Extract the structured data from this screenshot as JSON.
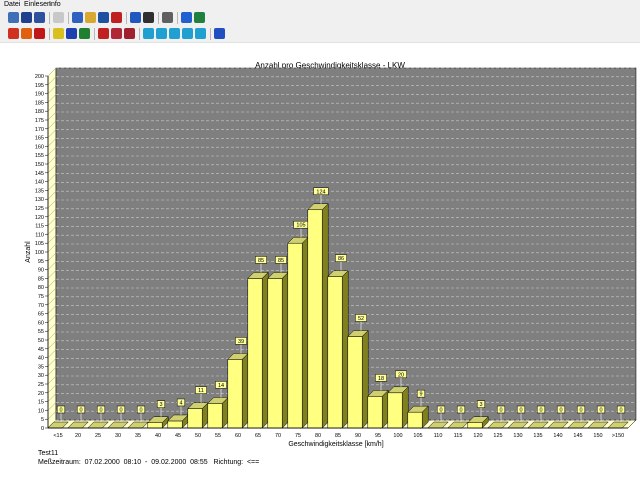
{
  "menu": {
    "items": [
      "Datei",
      "Einlesen",
      "Info"
    ]
  },
  "toolbar": {
    "row1": [
      {
        "name": "open-folder-icon",
        "color": "#3f6fb6"
      },
      {
        "name": "save-icon",
        "color": "#1f3f8f"
      },
      {
        "name": "save-all-icon",
        "color": "#2f4f9f"
      },
      {
        "sep": true
      },
      {
        "name": "filter-icon",
        "color": "#c8c8c8"
      },
      {
        "sep": true
      },
      {
        "name": "windows-icon",
        "color": "#3060c0"
      },
      {
        "name": "folder-icon",
        "color": "#d8a830"
      },
      {
        "name": "bar-chart-icon",
        "color": "#2050a0"
      },
      {
        "name": "edit-icon",
        "color": "#c02020"
      },
      {
        "sep": true
      },
      {
        "name": "clock-icon",
        "color": "#2058c0"
      },
      {
        "name": "stop-icon",
        "color": "#303030"
      },
      {
        "sep": true
      },
      {
        "name": "print-icon",
        "color": "#606060"
      },
      {
        "sep": true
      },
      {
        "name": "info-icon",
        "color": "#2060d0"
      },
      {
        "name": "globe-icon",
        "color": "#208040"
      }
    ],
    "row2": [
      {
        "name": "truck-red-icon",
        "color": "#d03020"
      },
      {
        "name": "car-orange-icon",
        "color": "#e06010"
      },
      {
        "name": "car-red-icon",
        "color": "#c01818"
      },
      {
        "sep": true
      },
      {
        "name": "bus-yellow-icon",
        "color": "#d8c020"
      },
      {
        "name": "truck-blue-icon",
        "color": "#2040b0"
      },
      {
        "name": "tractor-icon",
        "color": "#208030"
      },
      {
        "sep": true
      },
      {
        "name": "vehicle-red-icon",
        "color": "#c02020"
      },
      {
        "name": "vehicle-small-icon",
        "color": "#b02838"
      },
      {
        "name": "vehicle-group-icon",
        "color": "#a02030"
      },
      {
        "sep": true
      },
      {
        "name": "chart-type-1-icon",
        "color": "#20a0d0"
      },
      {
        "name": "chart-type-2-icon",
        "color": "#20a0d0"
      },
      {
        "name": "chart-type-3-icon",
        "color": "#20a0d0"
      },
      {
        "name": "chart-type-4-icon",
        "color": "#20a0d0"
      },
      {
        "name": "chart-type-5-icon",
        "color": "#20a0d0"
      },
      {
        "sep": true
      },
      {
        "name": "back-arrow-icon",
        "color": "#2050c0"
      }
    ]
  },
  "chart_data": {
    "type": "bar",
    "title": "Anzahl pro Geschwindigkeitsklasse - LKW",
    "xlabel": "Geschwindigkeitsklasse [km/h]",
    "ylabel": "Anzahl",
    "ylim": [
      0,
      200
    ],
    "ytick_step": 5,
    "grid": true,
    "categories": [
      "<15",
      "20",
      "25",
      "30",
      "35",
      "40",
      "45",
      "50",
      "55",
      "60",
      "65",
      "70",
      "75",
      "80",
      "85",
      "90",
      "95",
      "100",
      "105",
      "110",
      "115",
      "120",
      "125",
      "130",
      "135",
      "140",
      "145",
      "150",
      ">150"
    ],
    "values": [
      0,
      0,
      0,
      0,
      0,
      3,
      4,
      11,
      14,
      39,
      85,
      85,
      105,
      124,
      86,
      52,
      18,
      20,
      9,
      0,
      0,
      3,
      0,
      0,
      0,
      0,
      0,
      0,
      0
    ],
    "colors": {
      "plot_bg": "#7f7f7f",
      "bar_front": "#ffff80",
      "bar_top": "#d0d070",
      "bar_side": "#80801e",
      "label_bg": "#ffff99",
      "wall": "#ffffd0"
    }
  },
  "footer": {
    "name": "Test11",
    "period": "Meßzeitraum:  07.02.2000  08:10  -  09.02.2000  08:55   Richtung:  <=="
  }
}
